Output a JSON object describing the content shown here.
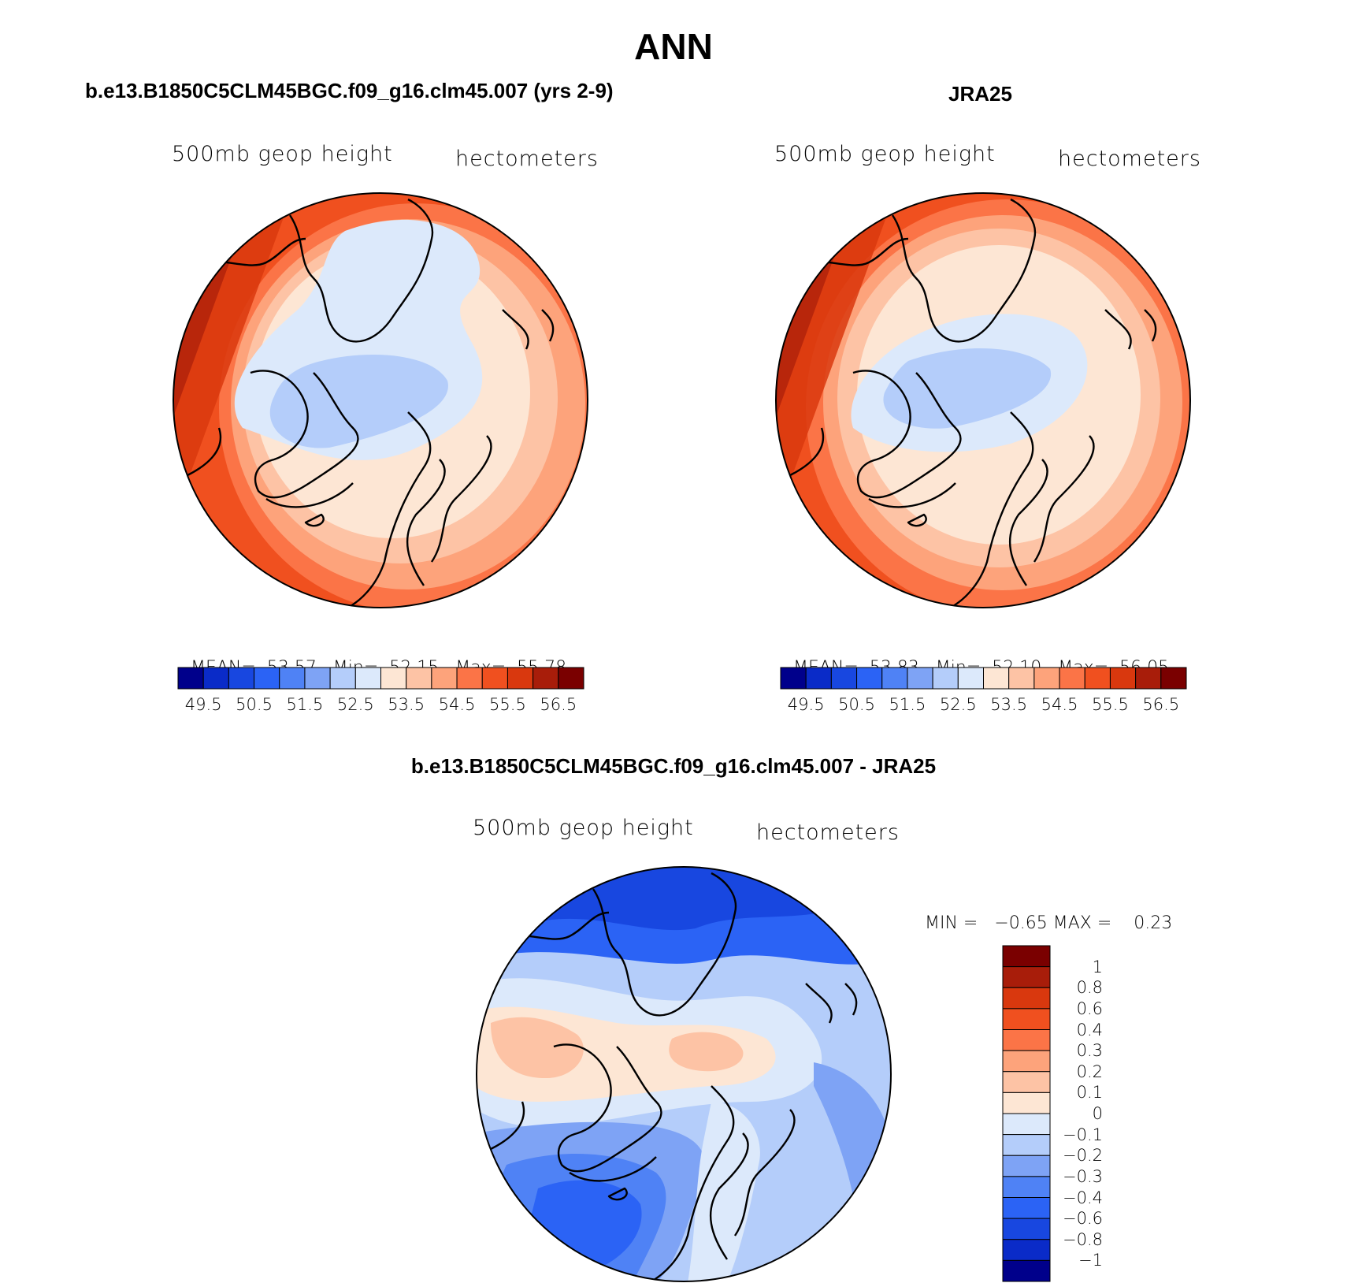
{
  "figure": {
    "title": "ANN"
  },
  "panels": [
    {
      "id": "model",
      "title": "b.e13.B1850C5CLM45BGC.f09_g16.clm45.007 (yrs 2-9)",
      "variable": "500mb geop height",
      "units": "hectometers",
      "stats": {
        "mean_label": "MEAN=",
        "mean": "53.57",
        "min_label": "Min=",
        "min": "52.15",
        "max_label": "Max=",
        "max": "55.78"
      },
      "colorbar": {
        "colors": [
          "#00008b",
          "#0a2bc8",
          "#1847e0",
          "#2b63f5",
          "#4f82f5",
          "#7ea3f5",
          "#b4cdfa",
          "#dce9fb",
          "#fde6d4",
          "#fdc3a5",
          "#fda37b",
          "#fb7447",
          "#f0501f",
          "#d9380e",
          "#a81d0a",
          "#7a0000"
        ],
        "labels": [
          "49.5",
          "50.5",
          "51.5",
          "52.5",
          "53.5",
          "54.5",
          "55.5",
          "56.5"
        ]
      }
    },
    {
      "id": "obs",
      "title": "JRA25",
      "variable": "500mb geop height",
      "units": "hectometers",
      "stats": {
        "mean_label": "MEAN=",
        "mean": "53.83",
        "min_label": "Min=",
        "min": "52.10",
        "max_label": "Max=",
        "max": "56.05"
      },
      "colorbar": {
        "colors": [
          "#00008b",
          "#0a2bc8",
          "#1847e0",
          "#2b63f5",
          "#4f82f5",
          "#7ea3f5",
          "#b4cdfa",
          "#dce9fb",
          "#fde6d4",
          "#fdc3a5",
          "#fda37b",
          "#fb7447",
          "#f0501f",
          "#d9380e",
          "#a81d0a",
          "#7a0000"
        ],
        "labels": [
          "49.5",
          "50.5",
          "51.5",
          "52.5",
          "53.5",
          "54.5",
          "55.5",
          "56.5"
        ]
      }
    },
    {
      "id": "diff",
      "title": "b.e13.B1850C5CLM45BGC.f09_g16.clm45.007 - JRA25",
      "variable": "500mb geop height",
      "units": "hectometers",
      "stats": {
        "min_label": "MIN =",
        "min": "−0.65",
        "max_label": "MAX =",
        "max": "0.23"
      },
      "colorbar": {
        "colors": [
          "#7a0000",
          "#a81d0a",
          "#d9380e",
          "#f0501f",
          "#fb7447",
          "#fda37b",
          "#fdc3a5",
          "#fde6d4",
          "#dce9fb",
          "#b4cdfa",
          "#7ea3f5",
          "#4f82f5",
          "#2b63f5",
          "#1847e0",
          "#0a2bc8",
          "#00008b"
        ],
        "labels": [
          "1",
          "0.8",
          "0.6",
          "0.4",
          "0.3",
          "0.2",
          "0.1",
          "0",
          "−0.1",
          "−0.2",
          "−0.3",
          "−0.4",
          "−0.6",
          "−0.8",
          "−1"
        ]
      }
    }
  ]
}
